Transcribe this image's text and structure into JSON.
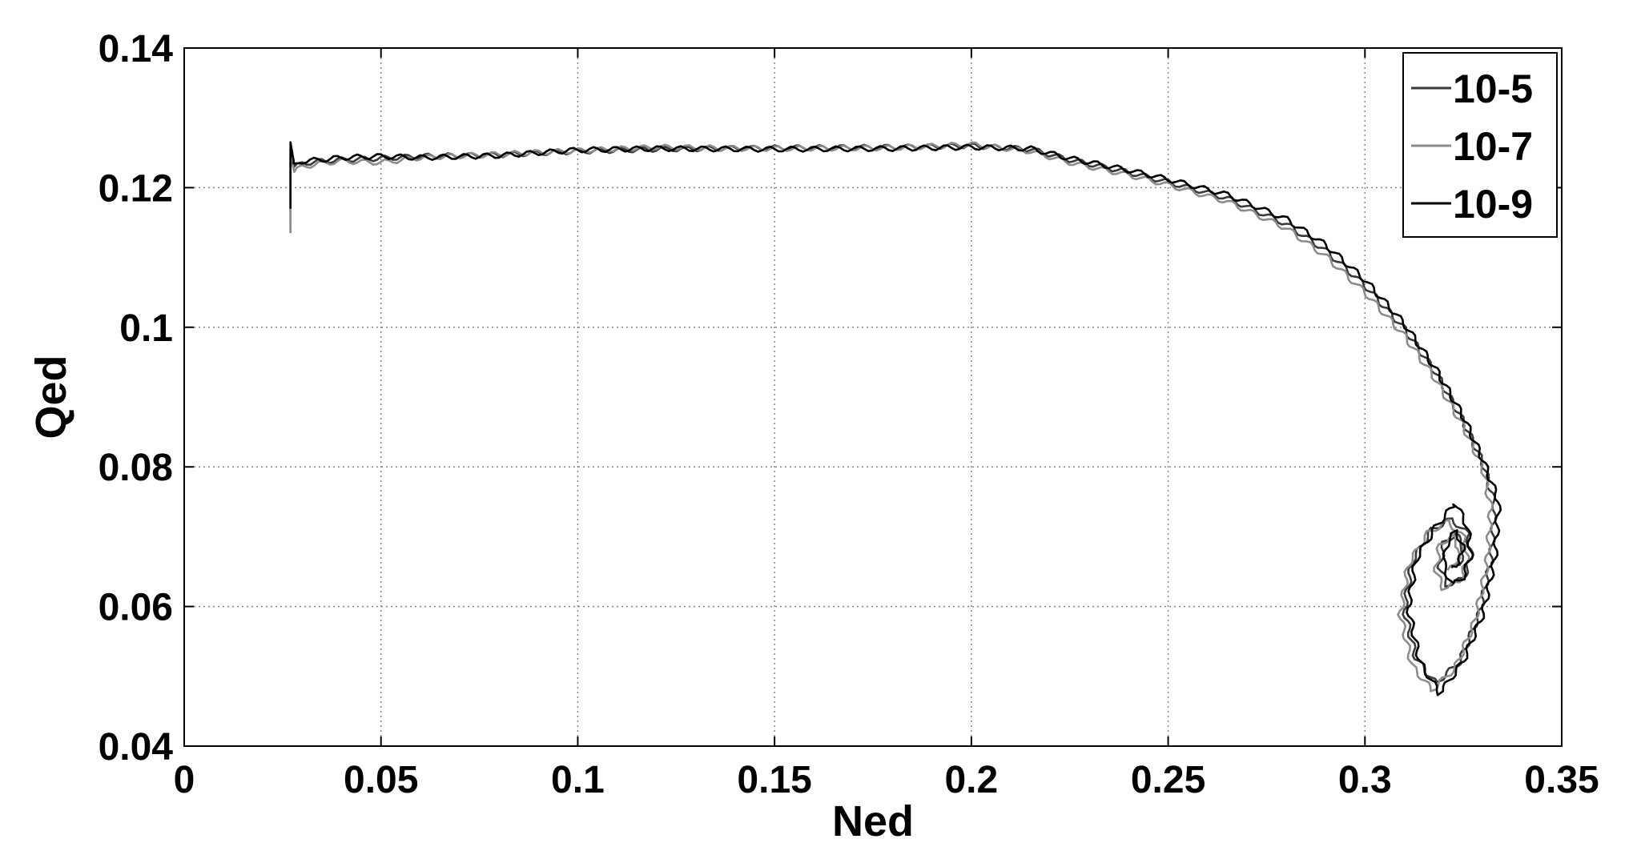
{
  "chart_data": {
    "type": "line",
    "title": "",
    "xlabel": "Ned",
    "ylabel": "Qed",
    "xlim": [
      0,
      0.35
    ],
    "ylim": [
      0.04,
      0.14
    ],
    "xticks": [
      "0",
      "0.05",
      "0.1",
      "0.15",
      "0.2",
      "0.25",
      "0.3",
      "0.35"
    ],
    "yticks": [
      "0.04",
      "0.06",
      "0.08",
      "0.1",
      "0.12",
      "0.14"
    ],
    "grid": true,
    "legend_position": "top-right",
    "series": [
      {
        "name": "10-5",
        "color": "#3a3a3a",
        "points": [
          [
            0.027,
            0.114
          ],
          [
            0.027,
            0.1255
          ],
          [
            0.028,
            0.1228
          ],
          [
            0.03,
            0.1235
          ],
          [
            0.035,
            0.1238
          ],
          [
            0.04,
            0.124
          ],
          [
            0.05,
            0.1242
          ],
          [
            0.06,
            0.1245
          ],
          [
            0.08,
            0.1247
          ],
          [
            0.1,
            0.1252
          ],
          [
            0.12,
            0.1255
          ],
          [
            0.15,
            0.1257
          ],
          [
            0.18,
            0.1258
          ],
          [
            0.2,
            0.126
          ],
          [
            0.215,
            0.1255
          ],
          [
            0.225,
            0.124
          ],
          [
            0.24,
            0.1222
          ],
          [
            0.25,
            0.1208
          ],
          [
            0.265,
            0.1185
          ],
          [
            0.28,
            0.1148
          ],
          [
            0.29,
            0.111
          ],
          [
            0.3,
            0.106
          ],
          [
            0.31,
            0.0998
          ],
          [
            0.318,
            0.0935
          ],
          [
            0.325,
            0.0865
          ],
          [
            0.33,
            0.0805
          ],
          [
            0.333,
            0.0745
          ],
          [
            0.332,
            0.0665
          ],
          [
            0.329,
            0.0588
          ],
          [
            0.324,
            0.052
          ],
          [
            0.318,
            0.049
          ],
          [
            0.313,
            0.0525
          ],
          [
            0.31,
            0.0595
          ],
          [
            0.312,
            0.0665
          ],
          [
            0.317,
            0.071
          ],
          [
            0.322,
            0.0725
          ],
          [
            0.326,
            0.0705
          ],
          [
            0.327,
            0.067
          ],
          [
            0.325,
            0.064
          ],
          [
            0.321,
            0.063
          ],
          [
            0.319,
            0.0655
          ],
          [
            0.32,
            0.069
          ],
          [
            0.323,
            0.0705
          ],
          [
            0.325,
            0.0685
          ],
          [
            0.324,
            0.066
          ],
          [
            0.322,
            0.0655
          ]
        ]
      },
      {
        "name": "10-7",
        "color": "#8c8c8c",
        "points": [
          [
            0.027,
            0.1135
          ],
          [
            0.027,
            0.1245
          ],
          [
            0.028,
            0.1222
          ],
          [
            0.03,
            0.123
          ],
          [
            0.035,
            0.1235
          ],
          [
            0.04,
            0.1238
          ],
          [
            0.05,
            0.1236
          ],
          [
            0.06,
            0.1243
          ],
          [
            0.08,
            0.1248
          ],
          [
            0.1,
            0.1253
          ],
          [
            0.12,
            0.1258
          ],
          [
            0.15,
            0.1256
          ],
          [
            0.18,
            0.1257
          ],
          [
            0.2,
            0.1262
          ],
          [
            0.215,
            0.1252
          ],
          [
            0.225,
            0.1236
          ],
          [
            0.24,
            0.1218
          ],
          [
            0.25,
            0.1204
          ],
          [
            0.265,
            0.118
          ],
          [
            0.28,
            0.1142
          ],
          [
            0.29,
            0.1102
          ],
          [
            0.3,
            0.105
          ],
          [
            0.31,
            0.0988
          ],
          [
            0.318,
            0.0925
          ],
          [
            0.325,
            0.0858
          ],
          [
            0.33,
            0.0798
          ],
          [
            0.332,
            0.074
          ],
          [
            0.331,
            0.066
          ],
          [
            0.328,
            0.058
          ],
          [
            0.323,
            0.0512
          ],
          [
            0.317,
            0.048
          ],
          [
            0.312,
            0.0515
          ],
          [
            0.309,
            0.0588
          ],
          [
            0.311,
            0.066
          ],
          [
            0.316,
            0.0705
          ],
          [
            0.321,
            0.0722
          ],
          [
            0.325,
            0.07
          ],
          [
            0.326,
            0.0665
          ],
          [
            0.324,
            0.0635
          ],
          [
            0.32,
            0.0625
          ],
          [
            0.318,
            0.065
          ],
          [
            0.319,
            0.0688
          ],
          [
            0.322,
            0.0702
          ],
          [
            0.324,
            0.0682
          ],
          [
            0.323,
            0.0658
          ],
          [
            0.321,
            0.0652
          ]
        ]
      },
      {
        "name": "10-9",
        "color": "#000000",
        "points": [
          [
            0.027,
            0.117
          ],
          [
            0.027,
            0.1265
          ],
          [
            0.028,
            0.1232
          ],
          [
            0.03,
            0.1238
          ],
          [
            0.035,
            0.124
          ],
          [
            0.04,
            0.1243
          ],
          [
            0.05,
            0.1245
          ],
          [
            0.06,
            0.1243
          ],
          [
            0.08,
            0.1246
          ],
          [
            0.1,
            0.1254
          ],
          [
            0.12,
            0.1256
          ],
          [
            0.15,
            0.1255
          ],
          [
            0.18,
            0.1256
          ],
          [
            0.2,
            0.1258
          ],
          [
            0.215,
            0.1256
          ],
          [
            0.225,
            0.1242
          ],
          [
            0.24,
            0.1225
          ],
          [
            0.25,
            0.1212
          ],
          [
            0.265,
            0.119
          ],
          [
            0.28,
            0.1155
          ],
          [
            0.29,
            0.1118
          ],
          [
            0.3,
            0.1068
          ],
          [
            0.31,
            0.1005
          ],
          [
            0.318,
            0.094
          ],
          [
            0.325,
            0.0872
          ],
          [
            0.33,
            0.081
          ],
          [
            0.334,
            0.075
          ],
          [
            0.333,
            0.0668
          ],
          [
            0.33,
            0.059
          ],
          [
            0.325,
            0.0522
          ],
          [
            0.319,
            0.0475
          ],
          [
            0.314,
            0.052
          ],
          [
            0.311,
            0.0598
          ],
          [
            0.313,
            0.0668
          ],
          [
            0.318,
            0.0714
          ],
          [
            0.323,
            0.0748
          ],
          [
            0.326,
            0.0715
          ],
          [
            0.327,
            0.0675
          ],
          [
            0.325,
            0.0642
          ],
          [
            0.322,
            0.0632
          ],
          [
            0.32,
            0.0658
          ],
          [
            0.321,
            0.0693
          ],
          [
            0.323,
            0.0708
          ],
          [
            0.325,
            0.0688
          ],
          [
            0.324,
            0.0662
          ],
          [
            0.322,
            0.0658
          ]
        ]
      }
    ]
  }
}
